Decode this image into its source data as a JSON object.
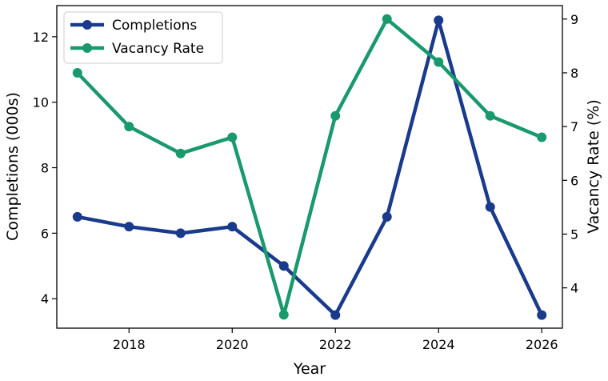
{
  "chart_data": {
    "type": "line",
    "x": [
      2017,
      2018,
      2019,
      2020,
      2021,
      2022,
      2023,
      2024,
      2025,
      2026
    ],
    "xlabel": "Year",
    "xticks": [
      2018,
      2020,
      2022,
      2024,
      2026
    ],
    "xlim": [
      2016.6,
      2026.4
    ],
    "grid": false,
    "legend_position": "top-left",
    "series": [
      {
        "name": "Completions",
        "axis": "left",
        "color": "#1a3a8c",
        "values": [
          6.5,
          6.2,
          6.0,
          6.2,
          5.0,
          3.5,
          6.5,
          12.5,
          6.8,
          3.5
        ]
      },
      {
        "name": "Vacancy Rate",
        "axis": "right",
        "color": "#1a9a6c",
        "values": [
          8.0,
          7.0,
          6.5,
          6.8,
          3.5,
          7.2,
          9.0,
          8.2,
          7.2,
          6.8
        ]
      }
    ],
    "y_left": {
      "label": "Completions (000s)",
      "ylim": [
        3.1,
        12.95
      ],
      "ticks": [
        4,
        6,
        8,
        10,
        12
      ]
    },
    "y_right": {
      "label": "Vacancy Rate (%)",
      "ylim": [
        3.25,
        9.25
      ],
      "ticks": [
        4,
        5,
        6,
        7,
        8,
        9
      ]
    }
  }
}
